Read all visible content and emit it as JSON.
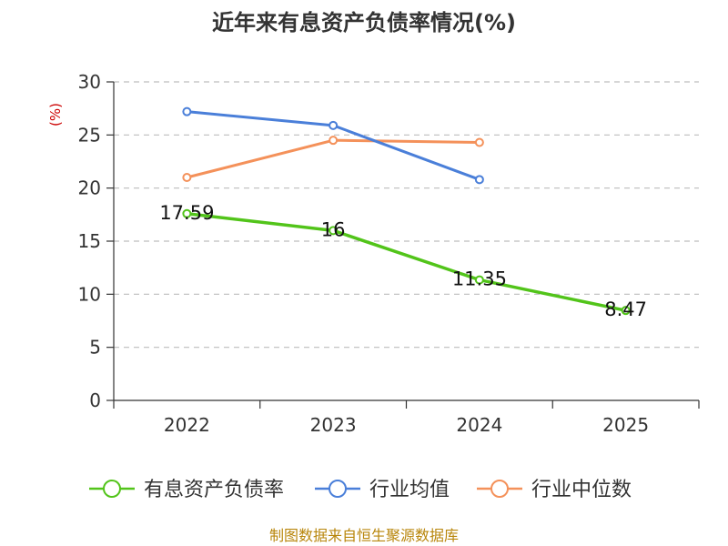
{
  "chart_data": {
    "type": "line",
    "title": "近年来有息资产负债率情况(%)",
    "ylabel": "(%)",
    "xlabel": "",
    "categories": [
      "2022",
      "2023",
      "2024",
      "2025"
    ],
    "ylim": [
      0,
      30
    ],
    "yticks": [
      0,
      5,
      10,
      15,
      20,
      25,
      30
    ],
    "grid": true,
    "legend_position": "bottom",
    "series": [
      {
        "name": "有息资产负债率",
        "color": "#52c41a",
        "values": [
          17.59,
          16,
          11.35,
          8.47
        ],
        "data_labels": [
          "17.59",
          "16",
          "11.35",
          "8.47"
        ]
      },
      {
        "name": "行业均值",
        "color": "#4a7fd9",
        "values": [
          27.2,
          25.9,
          20.8,
          null
        ],
        "data_labels": []
      },
      {
        "name": "行业中位数",
        "color": "#f4915a",
        "values": [
          21.0,
          24.5,
          24.3,
          null
        ],
        "data_labels": []
      }
    ],
    "source": "制图数据来自恒生聚源数据库"
  }
}
